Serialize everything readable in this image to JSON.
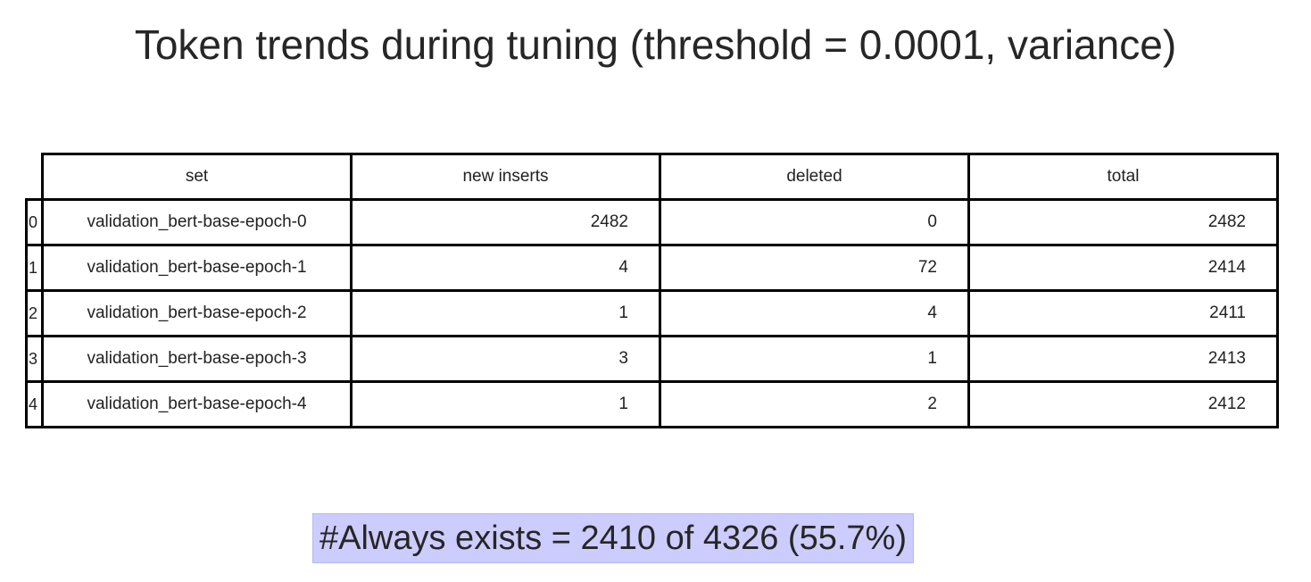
{
  "chart_data": {
    "type": "table",
    "title": "Token trends during tuning (threshold = 0.0001, variance)",
    "columns": [
      "set",
      "new inserts",
      "deleted",
      "total"
    ],
    "rows": [
      {
        "index": "0",
        "set": "validation_bert-base-epoch-0",
        "new_inserts": "2482",
        "deleted": "0",
        "total": "2482"
      },
      {
        "index": "1",
        "set": "validation_bert-base-epoch-1",
        "new_inserts": "4",
        "deleted": "72",
        "total": "2414"
      },
      {
        "index": "2",
        "set": "validation_bert-base-epoch-2",
        "new_inserts": "1",
        "deleted": "4",
        "total": "2411"
      },
      {
        "index": "3",
        "set": "validation_bert-base-epoch-3",
        "new_inserts": "3",
        "deleted": "1",
        "total": "2413"
      },
      {
        "index": "4",
        "set": "validation_bert-base-epoch-4",
        "new_inserts": "1",
        "deleted": "2",
        "total": "2412"
      }
    ],
    "annotation": "#Always exists = 2410 of 4326 (55.7%)",
    "annotation_bg": "#ccccff"
  }
}
